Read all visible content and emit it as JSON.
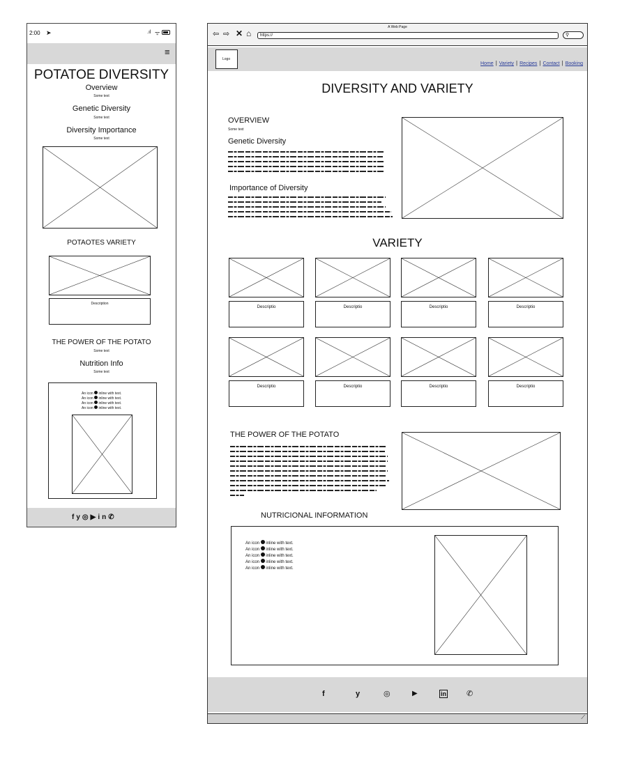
{
  "mobile": {
    "status": {
      "time": "2:00",
      "signal": "⊿",
      "wifi": "≋",
      "battery": "▭"
    },
    "menu_icon": "≡",
    "title": "POTATOE DIVERSITY",
    "overview": {
      "heading": "Overview",
      "text": "Some text"
    },
    "genetic": {
      "heading": "Genetic Diversity",
      "text": "Some text"
    },
    "importance": {
      "heading": "Diversity Importance",
      "text": "Some text"
    },
    "variety": {
      "heading": "POTAOTES VARIETY",
      "description": "Description"
    },
    "power": {
      "heading": "THE POWER OF THE POTATO",
      "text": "Some text"
    },
    "nutrition": {
      "heading": "Nutrition Info",
      "text": "Some text"
    },
    "icon_lines": [
      "An icon",
      "inline with text.",
      "An icon",
      "inline with text.",
      "An icon",
      "inline with text.",
      "An icon",
      "inline with text."
    ],
    "social_icons": [
      "facebook-icon",
      "twitter-icon",
      "instagram-icon",
      "youtube-icon",
      "linkedin-icon",
      "whatsapp-icon"
    ]
  },
  "desktop": {
    "window_title": "A Web Page",
    "url": "https://",
    "logo": "Logo",
    "nav": [
      "Home",
      "Variety",
      "Recipes",
      "Contact",
      "Booking"
    ],
    "title": "DIVERSITY AND VARIETY",
    "overview": {
      "heading": "OVERVIEW",
      "text": "Some text"
    },
    "genetic_heading": "Genetic Diversity",
    "importance_heading": "Importance of Diversity",
    "variety_heading": "VARIETY",
    "card_description": "Descriptio",
    "power_heading": "THE POWER OF THE POTATO",
    "nutrition_heading": "NUTRICIONAL INFORMATION",
    "icon_prefix": "An icon",
    "icon_suffix": "inline with text.",
    "social_icons": [
      "facebook-icon",
      "twitter-icon",
      "instagram-icon",
      "youtube-icon",
      "linkedin-icon",
      "whatsapp-icon"
    ]
  }
}
